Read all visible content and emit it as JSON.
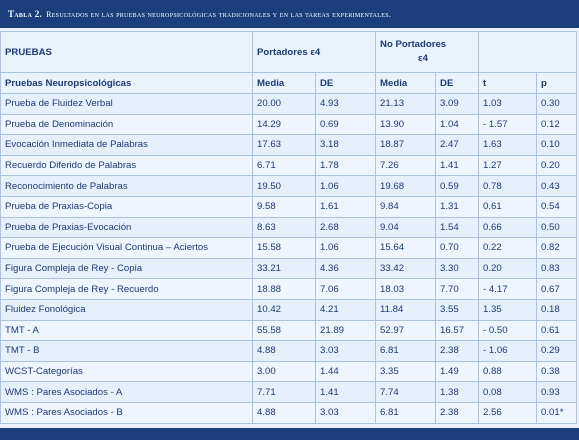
{
  "title": {
    "label": "Tabla 2.",
    "text": "Resultados en las pruebas neuropsicológicas tradicionales y en las tareas experimentales."
  },
  "header": {
    "pruebas": "PRUEBAS",
    "portadores": "Portadores  ε4",
    "no_portadores": "No Portadores",
    "no_portadores_line2": "ε4"
  },
  "subheader": {
    "neuro": "Pruebas Neuropsicológicas",
    "media1": "Media",
    "de1": "DE",
    "media2": "Media",
    "de2": "DE",
    "t": "t",
    "p": "p"
  },
  "rows": [
    [
      "Prueba de Fluidez Verbal",
      "20.00",
      "4.93",
      "21.13",
      "3.09",
      "1.03",
      "0.30"
    ],
    [
      "Prueba de Denominación",
      "14.29",
      "0.69",
      "13.90",
      "1.04",
      "- 1.57",
      "0.12"
    ],
    [
      "Evocación Inmediata  de Palabras",
      "17.63",
      "3.18",
      "18.87",
      "2.47",
      "1.63",
      "0.10"
    ],
    [
      "Recuerdo Diferido de Palabras",
      "6.71",
      "1.78",
      "7.26",
      "1.41",
      "1.27",
      "0.20"
    ],
    [
      "Reconocimiento de Palabras",
      "19.50",
      "1.06",
      "19.68",
      "0.59",
      "0.78",
      "0.43"
    ],
    [
      "Prueba de Praxias-Copia",
      "9.58",
      "1.61",
      "9.84",
      "1.31",
      "0.61",
      "0.54"
    ],
    [
      "Prueba de Praxias-Evocación",
      "8.63",
      "2.68",
      "9.04",
      "1.54",
      "0.66",
      "0.50"
    ],
    [
      "Prueba de Ejecución Visual Continua – Aciertos",
      "15.58",
      "1.06",
      "15.64",
      "0.70",
      "0.22",
      "0.82"
    ],
    [
      "Figura Compleja de Rey - Copia",
      "33.21",
      "4.36",
      "33.42",
      "3.30",
      "0.20",
      "0.83"
    ],
    [
      "Figura Compleja de Rey - Recuerdo",
      "18.88",
      "7.06",
      "18.03",
      "7.70",
      "- 4.17",
      "0.67"
    ],
    [
      "Fluidez Fonológica",
      "10.42",
      "4.21",
      "11.84",
      "3.55",
      "1.35",
      "0.18"
    ],
    [
      "TMT - A",
      "55.58",
      "21.89",
      "52.97",
      "16.57",
      "- 0.50",
      "0.61"
    ],
    [
      "TMT  - B",
      "4.88",
      "3.03",
      "6.81",
      "2.38",
      "- 1.06",
      "0.29"
    ],
    [
      "WCST-Categorías",
      "3.00",
      "1.44",
      "3.35",
      "1.49",
      "0.88",
      "0.38"
    ],
    [
      "WMS : Pares Asociados - A",
      "7.71",
      "1.41",
      "7.74",
      "1.38",
      "0.08",
      "0.93"
    ],
    [
      "WMS : Pares Asociados - B",
      "4.88",
      "3.03",
      "6.81",
      "2.38",
      "2.56",
      "0.01*"
    ]
  ]
}
